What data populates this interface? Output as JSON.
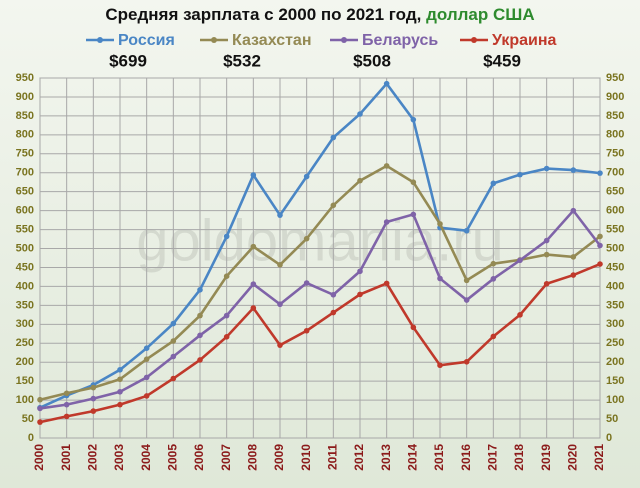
{
  "chart_data": {
    "type": "line",
    "title": "Средняя зарплата с 2000 по 2021 год,",
    "unit": "доллар США",
    "watermark": "goldomania.ru",
    "categories": [
      "2000",
      "2001",
      "2002",
      "2003",
      "2004",
      "2005",
      "2006",
      "2007",
      "2008",
      "2009",
      "2010",
      "2011",
      "2012",
      "2013",
      "2014",
      "2015",
      "2016",
      "2017",
      "2018",
      "2019",
      "2020",
      "2021"
    ],
    "series": [
      {
        "name": "Россия",
        "color": "#4a86c5",
        "current_label": "$699",
        "values": [
          80,
          112,
          140,
          180,
          237,
          302,
          391,
          532,
          694,
          588,
          690,
          793,
          855,
          935,
          840,
          555,
          547,
          672,
          695,
          711,
          707,
          699
        ]
      },
      {
        "name": "Казахстан",
        "color": "#948a54",
        "current_label": "$532",
        "values": [
          101,
          118,
          133,
          155,
          208,
          256,
          323,
          427,
          505,
          457,
          526,
          614,
          679,
          718,
          675,
          565,
          416,
          460,
          470,
          484,
          478,
          532
        ]
      },
      {
        "name": "Беларусь",
        "color": "#7f63a8",
        "current_label": "$508",
        "values": [
          78,
          88,
          104,
          122,
          160,
          215,
          271,
          323,
          406,
          353,
          409,
          378,
          440,
          570,
          590,
          421,
          364,
          420,
          469,
          521,
          600,
          508
        ]
      },
      {
        "name": "Украина",
        "color": "#c0392b",
        "current_label": "$459",
        "values": [
          42,
          57,
          71,
          88,
          111,
          157,
          206,
          267,
          343,
          245,
          283,
          331,
          379,
          408,
          292,
          192,
          201,
          268,
          325,
          407,
          430,
          459
        ]
      }
    ],
    "ylim": [
      0,
      950
    ],
    "yticks": [
      0,
      50,
      100,
      150,
      200,
      250,
      300,
      350,
      400,
      450,
      500,
      550,
      600,
      650,
      700,
      750,
      800,
      850,
      900,
      950
    ],
    "grid": true
  }
}
